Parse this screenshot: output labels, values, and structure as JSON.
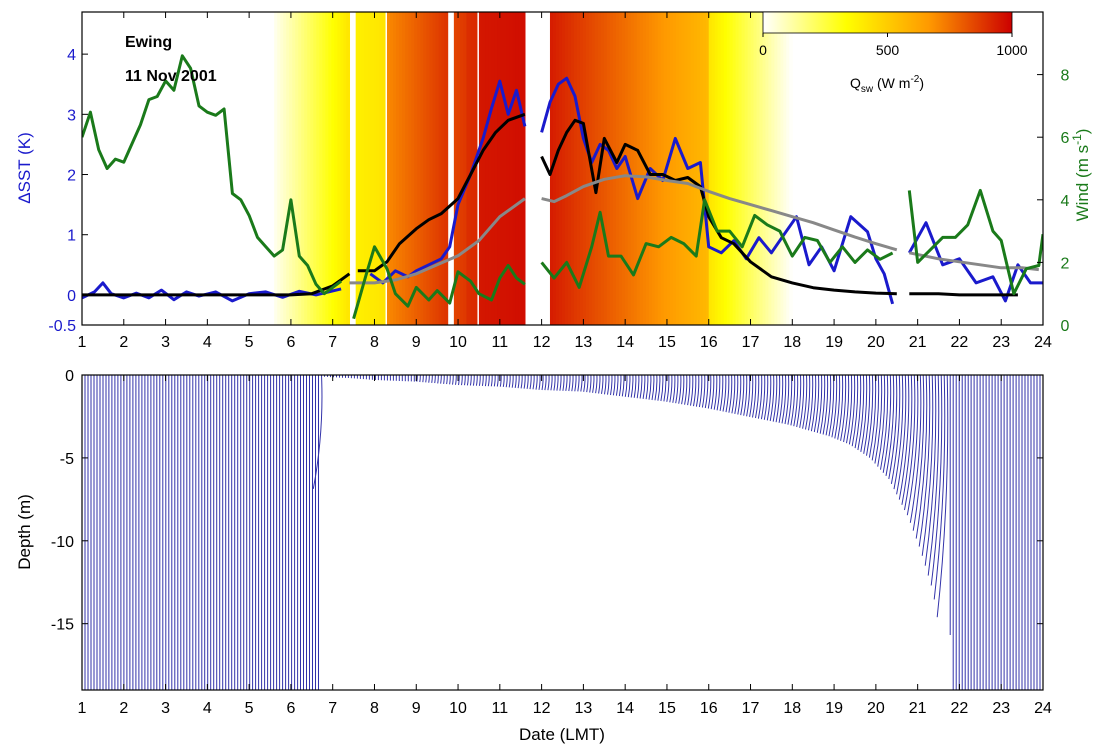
{
  "chart_data": [
    {
      "type": "line",
      "panel": "top",
      "annotation": [
        "Ewing",
        "11 Nov 2001"
      ],
      "xlim": [
        1,
        24
      ],
      "x_ticks": [
        1,
        2,
        3,
        4,
        5,
        6,
        7,
        8,
        9,
        10,
        11,
        12,
        13,
        14,
        15,
        16,
        17,
        18,
        19,
        20,
        21,
        22,
        23,
        24
      ],
      "ylabel_left": "ΔSST (K)",
      "ylim_left": [
        -0.5,
        4.7
      ],
      "y_ticks_left": [
        "-0.5",
        "0",
        "1",
        "2",
        "3",
        "4"
      ],
      "ylabel_right": "Wind (m s-1)",
      "ylim_right": [
        0,
        10
      ],
      "y_ticks_right": [
        "0",
        "2",
        "4",
        "6",
        "8"
      ],
      "colorbar": {
        "label": "Qsw (W m-2)",
        "range": [
          0,
          1000
        ],
        "ticks": [
          "0",
          "500",
          "1000"
        ],
        "colors": [
          "#ffffff",
          "#ffff00",
          "#ff9900",
          "#cc0000"
        ]
      },
      "background_qsw": [
        {
          "x0": 5.6,
          "x1": 7.4,
          "q0": 20,
          "q1": 420
        },
        {
          "x0": 7.55,
          "x1": 8.25,
          "q0": 380,
          "q1": 420
        },
        {
          "x0": 8.3,
          "x1": 9.75,
          "q0": 700,
          "q1": 890
        },
        {
          "x0": 9.9,
          "x1": 10.2,
          "q0": 850,
          "q1": 880
        },
        {
          "x0": 10.2,
          "x1": 10.45,
          "q0": 900,
          "q1": 910
        },
        {
          "x0": 10.5,
          "x1": 11.6,
          "q0": 950,
          "q1": 970
        },
        {
          "x0": 12.2,
          "x1": 16.0,
          "q0": 940,
          "q1": 560
        },
        {
          "x0": 16.0,
          "x1": 18.0,
          "q0": 420,
          "q1": 0
        }
      ],
      "series": [
        {
          "color": "#1a1acc",
          "axis": "left",
          "segments": [
            {
              "x": [
                1,
                1.3,
                1.5,
                1.7,
                2,
                2.3,
                2.6,
                2.9,
                3.2,
                3.5,
                3.8,
                4.2,
                4.6,
                5,
                5.4,
                5.8,
                6.2,
                6.6,
                6.9,
                7.2
              ],
              "y": [
                -0.05,
                0.05,
                0.2,
                0.02,
                -0.05,
                0.03,
                -0.05,
                0.08,
                -0.08,
                0.05,
                -0.02,
                0.05,
                -0.1,
                0.02,
                0.05,
                -0.04,
                0.06,
                0.0,
                0.05,
                0.1
              ]
            },
            {
              "x": [
                7.9,
                8.2,
                8.5,
                8.8,
                9.0,
                9.3,
                9.6,
                9.8,
                10.0,
                10.3,
                10.6,
                10.8,
                11.0,
                11.2,
                11.4,
                11.6
              ],
              "y": [
                0.35,
                0.2,
                0.4,
                0.3,
                0.4,
                0.5,
                0.6,
                0.8,
                1.5,
                2.0,
                2.6,
                3.1,
                3.55,
                3.0,
                3.4,
                2.8
              ]
            },
            {
              "x": [
                12.0,
                12.2,
                12.4,
                12.6,
                12.8,
                13.0,
                13.2,
                13.4,
                13.6,
                13.8,
                14.0,
                14.3,
                14.6,
                14.9,
                15.2,
                15.5,
                15.8,
                16.0,
                16.3,
                16.6,
                16.9,
                17.2,
                17.5,
                17.8,
                18.1,
                18.4,
                18.7,
                19.0,
                19.4,
                19.8,
                20.0,
                20.2,
                20.4
              ],
              "y": [
                2.7,
                3.2,
                3.5,
                3.6,
                3.3,
                2.6,
                2.2,
                2.5,
                2.4,
                2.1,
                2.3,
                1.6,
                2.1,
                1.9,
                2.6,
                2.1,
                2.2,
                0.8,
                0.7,
                0.9,
                0.6,
                0.95,
                0.7,
                1.0,
                1.3,
                0.5,
                0.8,
                0.4,
                1.3,
                1.05,
                0.6,
                0.35,
                -0.15
              ]
            },
            {
              "x": [
                20.8,
                21.2,
                21.6,
                22.0,
                22.4,
                22.8,
                23.1,
                23.4,
                23.7,
                24.0
              ],
              "y": [
                0.7,
                1.2,
                0.5,
                0.6,
                0.2,
                0.3,
                -0.1,
                0.5,
                0.2,
                0.2
              ]
            }
          ]
        },
        {
          "color": "#000000",
          "axis": "left",
          "segments": [
            {
              "x": [
                1,
                2,
                3,
                4,
                5,
                6,
                6.5,
                7.0,
                7.4
              ],
              "y": [
                0,
                0,
                0,
                0,
                0,
                0,
                0.02,
                0.15,
                0.35
              ]
            },
            {
              "x": [
                7.6,
                8.0,
                8.3,
                8.6,
                9.0,
                9.3,
                9.6,
                10.0,
                10.3,
                10.6,
                10.9,
                11.2,
                11.6
              ],
              "y": [
                0.4,
                0.4,
                0.55,
                0.85,
                1.1,
                1.25,
                1.35,
                1.6,
                2.0,
                2.4,
                2.7,
                2.9,
                3.0
              ]
            },
            {
              "x": [
                12.0,
                12.2,
                12.4,
                12.6,
                12.8,
                13.0,
                13.3,
                13.5,
                13.8,
                14.0,
                14.3,
                14.6,
                14.9,
                15.2,
                15.5,
                15.8,
                16.0,
                16.3,
                16.6,
                17.0,
                17.5,
                18.0,
                18.5,
                19.0,
                19.5,
                20.0,
                20.5
              ],
              "y": [
                2.3,
                2.0,
                2.4,
                2.7,
                2.9,
                2.85,
                1.7,
                2.6,
                2.2,
                2.5,
                2.4,
                2.0,
                2.0,
                1.9,
                1.95,
                1.8,
                1.3,
                0.95,
                0.85,
                0.55,
                0.3,
                0.2,
                0.12,
                0.08,
                0.05,
                0.03,
                0.02
              ]
            },
            {
              "x": [
                20.8,
                21.5,
                22.0,
                22.5,
                23.0,
                23.4
              ],
              "y": [
                0.02,
                0.02,
                0.0,
                0.0,
                0.0,
                0.0
              ]
            }
          ]
        },
        {
          "color": "#888888",
          "axis": "left",
          "segments": [
            {
              "x": [
                7.4,
                8.0,
                8.5,
                9.0,
                9.5,
                10.0,
                10.5,
                11.0,
                11.6
              ],
              "y": [
                0.2,
                0.2,
                0.25,
                0.35,
                0.5,
                0.65,
                0.9,
                1.3,
                1.6
              ]
            },
            {
              "x": [
                12.0,
                12.3,
                12.6,
                13.0,
                13.5,
                14.0,
                14.5,
                15.0,
                15.5,
                16.0,
                16.5,
                17.0,
                17.5,
                18.0,
                18.5,
                19.0,
                19.5,
                20.0,
                20.5
              ],
              "y": [
                1.6,
                1.55,
                1.65,
                1.8,
                1.92,
                1.98,
                1.96,
                1.9,
                1.85,
                1.72,
                1.6,
                1.5,
                1.4,
                1.3,
                1.2,
                1.08,
                0.96,
                0.85,
                0.75
              ]
            },
            {
              "x": [
                20.8,
                21.5,
                22.0,
                22.5,
                23.0,
                23.5,
                23.9
              ],
              "y": [
                0.7,
                0.6,
                0.55,
                0.5,
                0.45,
                0.45,
                0.42
              ]
            }
          ]
        },
        {
          "color": "#1a7a1a",
          "axis": "right",
          "segments": [
            {
              "x": [
                1.0,
                1.2,
                1.4,
                1.6,
                1.8,
                2.0,
                2.2,
                2.4,
                2.6,
                2.8,
                3.0,
                3.2,
                3.4,
                3.6,
                3.8,
                4.0,
                4.2,
                4.4,
                4.6,
                4.8,
                5.0,
                5.2,
                5.4,
                5.6,
                5.8,
                6.0,
                6.2,
                6.4,
                6.6,
                6.8,
                7.0,
                7.2
              ],
              "y": [
                6.0,
                6.8,
                5.6,
                5.0,
                5.3,
                5.2,
                5.8,
                6.4,
                7.2,
                7.3,
                7.8,
                7.5,
                8.6,
                8.2,
                7.0,
                6.8,
                6.7,
                6.9,
                4.2,
                4.0,
                3.5,
                2.8,
                2.5,
                2.2,
                2.4,
                4.0,
                2.2,
                1.9,
                1.3,
                1.0,
                1.2,
                1.4
              ]
            },
            {
              "x": [
                7.5,
                7.8,
                8.0,
                8.3,
                8.5,
                8.8,
                9.0,
                9.3,
                9.5,
                9.8,
                10.0,
                10.3,
                10.5,
                10.8,
                11.0,
                11.2,
                11.4,
                11.6
              ],
              "y": [
                0.2,
                1.6,
                2.5,
                1.8,
                1.0,
                0.6,
                1.2,
                0.8,
                1.1,
                0.7,
                1.7,
                1.4,
                1.0,
                0.8,
                1.5,
                1.9,
                1.5,
                1.3
              ]
            },
            {
              "x": [
                12.0,
                12.3,
                12.6,
                12.9,
                13.2,
                13.4,
                13.6,
                13.9,
                14.2,
                14.5,
                14.8,
                15.1,
                15.4,
                15.7,
                15.9,
                16.2,
                16.5,
                16.8,
                17.1,
                17.4,
                17.7,
                18.0,
                18.3,
                18.6,
                18.9,
                19.2,
                19.5,
                19.8,
                20.1,
                20.4
              ],
              "y": [
                2.0,
                1.5,
                2.0,
                1.2,
                2.5,
                3.6,
                2.2,
                2.2,
                1.6,
                2.6,
                2.5,
                2.8,
                2.6,
                2.2,
                4.0,
                3.0,
                3.0,
                2.5,
                3.5,
                3.2,
                3.0,
                2.2,
                2.8,
                2.7,
                2.0,
                2.5,
                2.0,
                2.4,
                2.1,
                2.3
              ]
            },
            {
              "x": [
                20.8,
                21.0,
                21.3,
                21.6,
                21.9,
                22.2,
                22.5,
                22.8,
                23.0,
                23.3,
                23.6,
                23.9,
                24.0
              ],
              "y": [
                4.3,
                2.0,
                2.4,
                2.8,
                2.8,
                3.2,
                4.3,
                3.0,
                2.7,
                1.0,
                1.8,
                1.9,
                2.9
              ]
            }
          ]
        }
      ]
    },
    {
      "type": "profile",
      "panel": "bottom",
      "xlabel": "Date (LMT)",
      "ylabel": "Depth (m)",
      "xlim": [
        1,
        24
      ],
      "x_ticks": [
        1,
        2,
        3,
        4,
        5,
        6,
        7,
        8,
        9,
        10,
        11,
        12,
        13,
        14,
        15,
        16,
        17,
        18,
        19,
        20,
        21,
        22,
        23,
        24
      ],
      "ylim": [
        -19,
        0
      ],
      "y_ticks": [
        "0",
        "-5",
        "-10",
        "-15"
      ],
      "color": "#3333aa",
      "profile_start": 1.0,
      "profile_end": 24.0,
      "profile_count": 322,
      "mixed_depth": {
        "x": [
          1.0,
          6.7,
          6.75,
          7.5,
          8.0,
          9.0,
          10.0,
          11.0,
          12.0,
          13.0,
          14.0,
          15.0,
          16.0,
          17.0,
          18.0,
          19.0,
          19.5,
          20.0,
          20.5,
          21.0,
          21.3,
          21.6,
          21.8,
          21.85,
          24.0
        ],
        "depth": [
          -19,
          -19,
          -0.1,
          -0.2,
          -0.3,
          -0.4,
          -0.6,
          -0.7,
          -0.9,
          -1.0,
          -1.3,
          -1.6,
          -2.0,
          -2.5,
          -3.0,
          -3.7,
          -4.2,
          -5.0,
          -6.3,
          -8.5,
          -10.5,
          -13.0,
          -16.0,
          -19,
          -19
        ]
      }
    }
  ]
}
